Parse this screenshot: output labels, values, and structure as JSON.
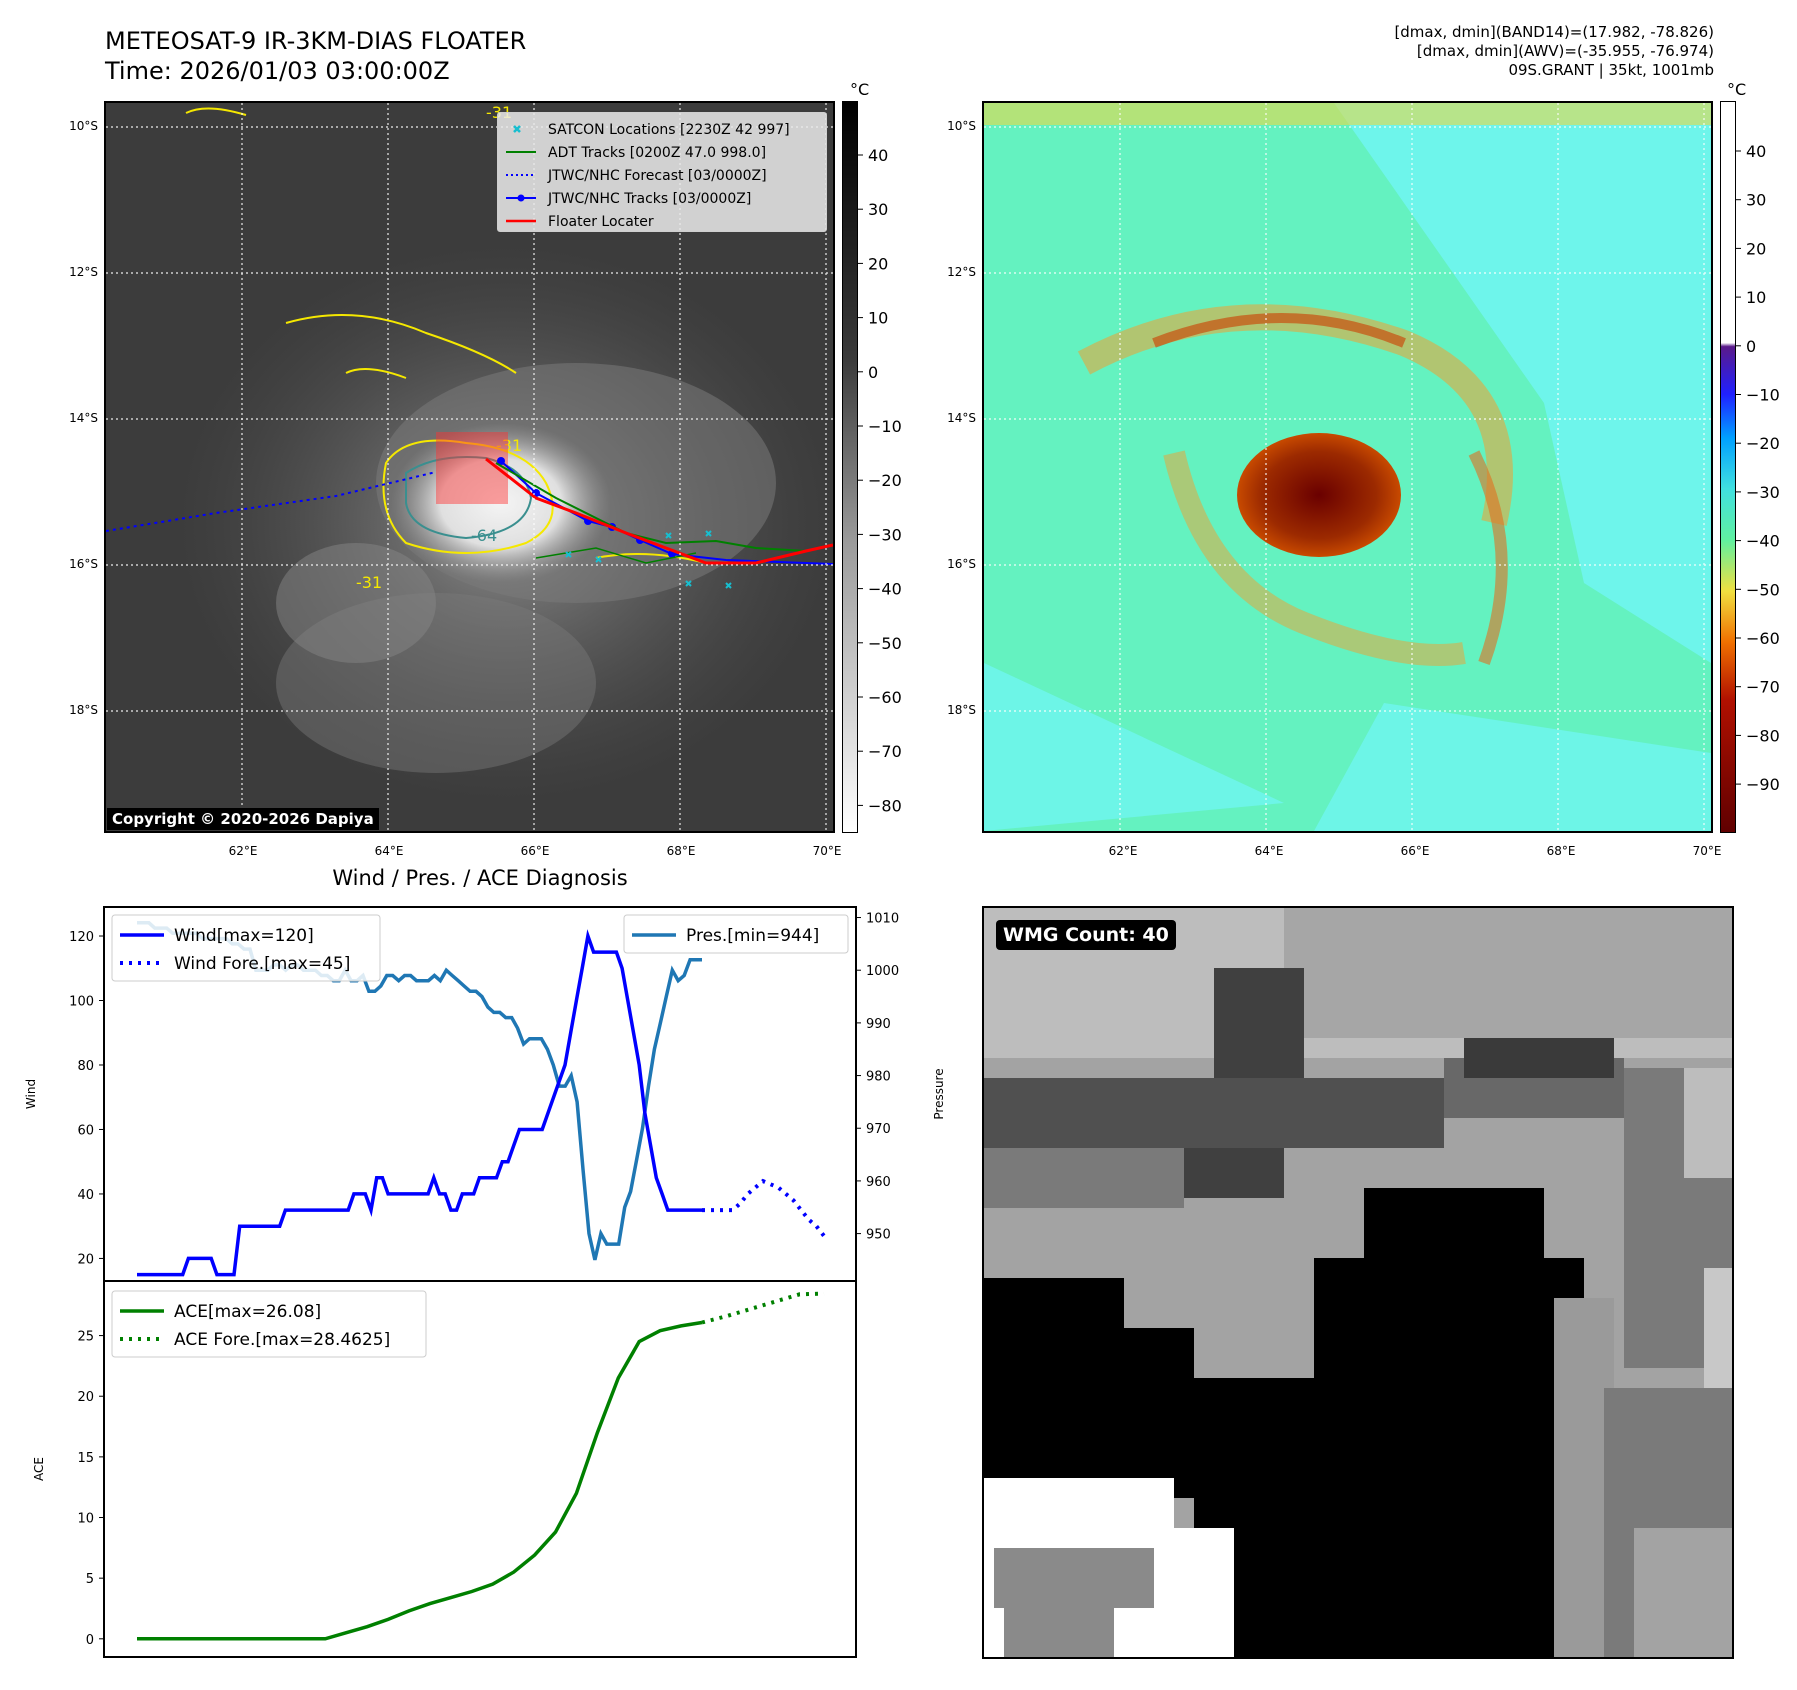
{
  "header": {
    "title_line1": "METEOSAT-9 IR-3KM-DIAS FLOATER",
    "title_line2": "Time: 2026/01/03 03:00:00Z",
    "info_line1": "[dmax, dmin](BAND14)=(17.982, -78.826)",
    "info_line2": "[dmax, dmin](AWV)=(-35.955, -76.974)",
    "info_line3": "09S.GRANT | 35kt, 1001mb"
  },
  "ir_panel": {
    "lat_labels": [
      "10°S",
      "12°S",
      "14°S",
      "16°S",
      "18°S"
    ],
    "lon_labels": [
      "62°E",
      "64°E",
      "66°E",
      "68°E",
      "70°E"
    ],
    "colorbar_unit": "°C",
    "colorbar_ticks": [
      "40",
      "30",
      "20",
      "10",
      "0",
      "−10",
      "−20",
      "−30",
      "−40",
      "−50",
      "−60",
      "−70",
      "−80"
    ],
    "contour_labels": [
      "-31",
      "-64",
      "-31",
      "-31"
    ],
    "copyright": "Copyright © 2020-2026 Dapiya",
    "legend": [
      {
        "label": "SATCON Locations [2230Z 42 997]",
        "color": "#17becf",
        "style": "x-marker"
      },
      {
        "label": "ADT Tracks [0200Z 47.0 998.0]",
        "color": "#008000",
        "style": "line"
      },
      {
        "label": "JTWC/NHC Forecast [03/0000Z]",
        "color": "#0000ff",
        "style": "dotted"
      },
      {
        "label": "JTWC/NHC Tracks [03/0000Z]",
        "color": "#0000ff",
        "style": "line-dot"
      },
      {
        "label": "Floater Locater",
        "color": "#ff0000",
        "style": "line"
      }
    ]
  },
  "awv_panel": {
    "lat_labels": [
      "10°S",
      "12°S",
      "14°S",
      "16°S",
      "18°S"
    ],
    "lon_labels": [
      "62°E",
      "64°E",
      "66°E",
      "68°E",
      "70°E"
    ],
    "colorbar_unit": "°C",
    "colorbar_ticks": [
      "40",
      "30",
      "20",
      "10",
      "0",
      "−10",
      "−20",
      "−30",
      "−40",
      "−50",
      "−60",
      "−70",
      "−80",
      "−90"
    ]
  },
  "diag_panel": {
    "title": "Wind / Pres. / ACE Diagnosis",
    "wind_ylabel": "Wind",
    "pres_ylabel": "Pressure",
    "ace_ylabel": "ACE"
  },
  "wmg_panel": {
    "label": "WMG Count: 40"
  },
  "chart_data": [
    {
      "type": "line",
      "title": "Wind / Pres. / ACE Diagnosis",
      "ylabel": "Wind",
      "ylim": [
        13,
        129
      ],
      "yticks": [
        20,
        40,
        60,
        80,
        100,
        120
      ],
      "y2label": "Pressure",
      "y2lim": [
        941,
        1012
      ],
      "y2ticks": [
        950,
        960,
        970,
        980,
        990,
        1000,
        1010
      ],
      "series": [
        {
          "name": "Wind[max=120]",
          "axis": "left",
          "color": "#0000ff",
          "style": "solid",
          "values": [
            15,
            15,
            15,
            15,
            15,
            15,
            15,
            15,
            15,
            20,
            20,
            20,
            20,
            20,
            15,
            15,
            15,
            15,
            30,
            30,
            30,
            30,
            30,
            30,
            30,
            30,
            35,
            35,
            35,
            35,
            35,
            35,
            35,
            35,
            35,
            35,
            35,
            35,
            40,
            40,
            40,
            35,
            45,
            45,
            40,
            40,
            40,
            40,
            40,
            40,
            40,
            40,
            45,
            40,
            40,
            35,
            35,
            40,
            40,
            40,
            45,
            45,
            45,
            45,
            50,
            50,
            55,
            60,
            60,
            60,
            60,
            60,
            65,
            70,
            75,
            80,
            90,
            100,
            110,
            120,
            115,
            115,
            115,
            115,
            115,
            110,
            100,
            90,
            80,
            65,
            55,
            45,
            40,
            35,
            35,
            35,
            35,
            35,
            35,
            35
          ]
        },
        {
          "name": "Wind Fore.[max=45]",
          "axis": "left",
          "color": "#0000ff",
          "style": "dotted",
          "values": [
            35,
            35,
            35,
            35,
            35,
            37,
            40,
            42,
            44,
            43,
            42,
            40,
            38,
            35,
            32,
            30,
            27
          ]
        },
        {
          "name": "Pres.[min=944]",
          "axis": "right",
          "color": "#1f77b4",
          "style": "solid",
          "values": [
            1009,
            1009,
            1009,
            1008,
            1008,
            1008,
            1007,
            1007,
            1007,
            1007,
            1007,
            1006,
            1006,
            1006,
            1006,
            1006,
            1005,
            1005,
            1004,
            1004,
            1000,
            1000,
            1000,
            1001,
            1001,
            1000,
            1001,
            1001,
            1000,
            1000,
            1000,
            999,
            999,
            998,
            998,
            1000,
            998,
            998,
            999,
            996,
            996,
            997,
            999,
            999,
            998,
            999,
            999,
            998,
            998,
            998,
            999,
            998,
            1000,
            999,
            998,
            997,
            996,
            996,
            995,
            993,
            992,
            992,
            991,
            991,
            989,
            986,
            987,
            987,
            987,
            985,
            982,
            978,
            978,
            980,
            975,
            962,
            950,
            945,
            950,
            948,
            948,
            948,
            955,
            958,
            964,
            970,
            978,
            985,
            990,
            995,
            1000,
            998,
            999,
            1002,
            1002,
            1002
          ]
        },
        {
          "name": "ACE[max=26.08]",
          "axis": "ace",
          "color": "#008000",
          "style": "solid",
          "values": [
            0,
            0,
            0,
            0,
            0,
            0,
            0,
            0,
            0,
            0,
            0.5,
            1,
            1.6,
            2.3,
            2.9,
            3.4,
            3.9,
            4.5,
            5.5,
            6.9,
            8.8,
            12,
            17,
            21.5,
            24.5,
            25.4,
            25.8,
            26.08
          ]
        },
        {
          "name": "ACE Fore.[max=28.4625]",
          "axis": "ace",
          "color": "#008000",
          "style": "dotted",
          "values": [
            26.08,
            26.6,
            27.2,
            27.8,
            28.4,
            28.4625
          ]
        }
      ],
      "ace_ylabel": "ACE",
      "ace_ylim": [
        -1.5,
        29.5
      ],
      "ace_yticks": [
        0,
        5,
        10,
        15,
        20,
        25
      ],
      "legend_placement": "upper-left / upper-right"
    }
  ]
}
